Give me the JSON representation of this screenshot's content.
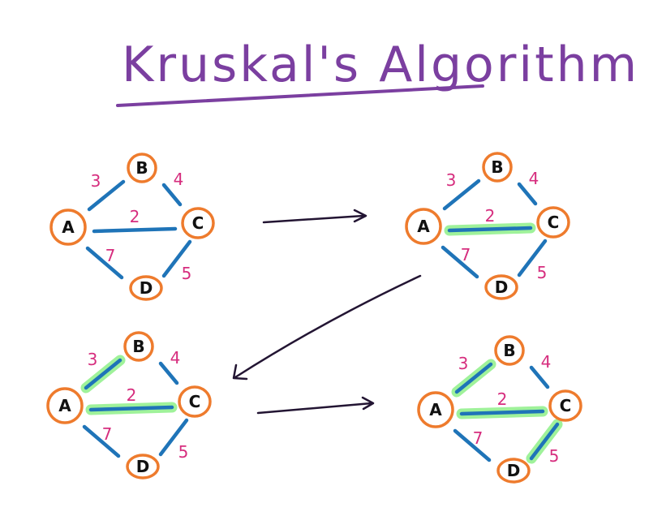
{
  "title": "Kruskal's Algorithm",
  "colors": {
    "title": "#7b3fa0",
    "node_stroke": "#ee7b2d",
    "edge": "#1f74b8",
    "weight": "#d62d7e",
    "highlight": "#9ff29a",
    "arrow": "#231533"
  },
  "graph": {
    "nodes": [
      {
        "id": "A",
        "label": "A"
      },
      {
        "id": "B",
        "label": "B"
      },
      {
        "id": "C",
        "label": "C"
      },
      {
        "id": "D",
        "label": "D"
      }
    ],
    "edges": [
      {
        "id": "AB",
        "from": "A",
        "to": "B",
        "weight": "3"
      },
      {
        "id": "BC",
        "from": "B",
        "to": "C",
        "weight": "4"
      },
      {
        "id": "AC",
        "from": "A",
        "to": "C",
        "weight": "2"
      },
      {
        "id": "AD",
        "from": "A",
        "to": "D",
        "weight": "7"
      },
      {
        "id": "CD",
        "from": "C",
        "to": "D",
        "weight": "5"
      }
    ]
  },
  "steps": [
    {
      "id": "step-1",
      "highlighted_edges": []
    },
    {
      "id": "step-2",
      "highlighted_edges": [
        "AC"
      ]
    },
    {
      "id": "step-3",
      "highlighted_edges": [
        "AC",
        "AB"
      ]
    },
    {
      "id": "step-4",
      "highlighted_edges": [
        "AC",
        "AB",
        "CD"
      ]
    }
  ]
}
